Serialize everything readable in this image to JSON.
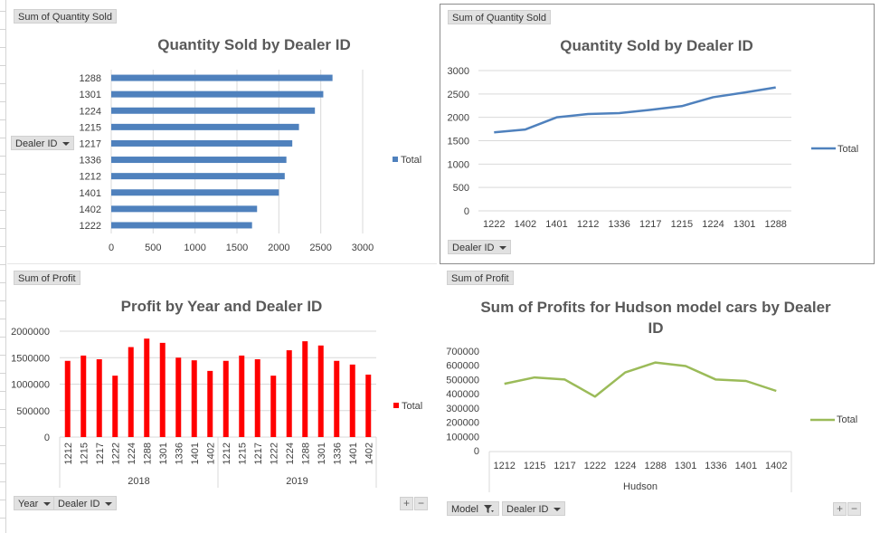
{
  "panels": {
    "p1": {
      "field_button": "Sum of Quantity Sold",
      "row_button": "Dealer ID",
      "chart_data": {
        "type": "bar",
        "orientation": "horizontal",
        "title": "Quantity Sold by Dealer ID",
        "categories": [
          "1288",
          "1301",
          "1224",
          "1215",
          "1217",
          "1336",
          "1212",
          "1401",
          "1402",
          "1222"
        ],
        "series": [
          {
            "name": "Total",
            "values": [
              2640,
              2530,
              2430,
              2240,
              2160,
              2090,
              2070,
              2000,
              1740,
              1680
            ],
            "color": "#4f81bd"
          }
        ],
        "xlim": [
          0,
          3000
        ],
        "xticks": [
          0,
          500,
          1000,
          1500,
          2000,
          2500,
          3000
        ],
        "grid": true,
        "legend": "right"
      }
    },
    "p2": {
      "field_button": "Sum of Quantity Sold",
      "row_button": "Dealer ID",
      "chart_data": {
        "type": "line",
        "title": "Quantity Sold by Dealer ID",
        "categories": [
          "1222",
          "1402",
          "1401",
          "1212",
          "1336",
          "1217",
          "1215",
          "1224",
          "1301",
          "1288"
        ],
        "series": [
          {
            "name": "Total",
            "values": [
              1680,
              1740,
              2000,
              2070,
              2090,
              2160,
              2240,
              2430,
              2530,
              2640
            ],
            "color": "#4f81bd"
          }
        ],
        "ylim": [
          0,
          3000
        ],
        "yticks": [
          0,
          500,
          1000,
          1500,
          2000,
          2500,
          3000
        ],
        "grid": true,
        "legend": "right"
      }
    },
    "p3": {
      "field_button": "Sum of Profit",
      "row_buttons": [
        "Year",
        "Dealer ID"
      ],
      "zoom": [
        "+",
        "−"
      ],
      "chart_data": {
        "type": "bar",
        "title": "Profit by Year and Dealer ID",
        "groups": [
          {
            "label": "2018",
            "categories": [
              "1212",
              "1215",
              "1217",
              "1222",
              "1224",
              "1288",
              "1301",
              "1336",
              "1401",
              "1402"
            ]
          },
          {
            "label": "2019",
            "categories": [
              "1212",
              "1215",
              "1217",
              "1222",
              "1224",
              "1288",
              "1301",
              "1336",
              "1401",
              "1402"
            ]
          }
        ],
        "series": [
          {
            "name": "Total",
            "values": [
              1440000,
              1540000,
              1470000,
              1160000,
              1700000,
              1860000,
              1780000,
              1500000,
              1450000,
              1250000,
              1440000,
              1540000,
              1470000,
              1160000,
              1640000,
              1810000,
              1730000,
              1440000,
              1370000,
              1180000
            ],
            "color": "#ff0000"
          }
        ],
        "ylim": [
          0,
          2000000
        ],
        "yticks": [
          0,
          500000,
          1000000,
          1500000,
          2000000
        ],
        "grid": true,
        "legend": "right"
      }
    },
    "p4": {
      "field_button": "Sum of Profit",
      "row_buttons": [
        "Model",
        "Dealer ID"
      ],
      "zoom": [
        "+",
        "−"
      ],
      "chart_data": {
        "type": "line",
        "title": "Sum of Profits for Hudson model cars by Dealer ID",
        "title_lines": [
          "Sum of Profits for Hudson model cars by Dealer",
          "ID"
        ],
        "group_label": "Hudson",
        "categories": [
          "1212",
          "1215",
          "1217",
          "1222",
          "1224",
          "1288",
          "1301",
          "1336",
          "1401",
          "1402"
        ],
        "series": [
          {
            "name": "Total",
            "values": [
              470000,
              515000,
              500000,
              380000,
              550000,
              620000,
              595000,
              500000,
              490000,
              420000
            ],
            "color": "#9bbb59"
          }
        ],
        "ylim": [
          0,
          700000
        ],
        "yticks": [
          0,
          100000,
          200000,
          300000,
          400000,
          500000,
          600000,
          700000
        ],
        "grid": false,
        "legend": "right"
      }
    }
  }
}
